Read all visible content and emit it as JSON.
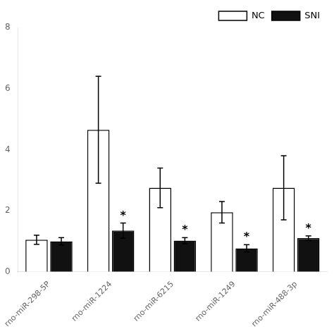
{
  "chart_data": {
    "type": "bar",
    "categories": [
      "rno-miR-298-5P",
      "rno-miR-1224",
      "rno-miR-6215",
      "rno-miR-1249",
      "rno-miR-488-3p"
    ],
    "series": [
      {
        "name": "NC",
        "color": "#ffffff",
        "values": [
          1.05,
          4.65,
          2.75,
          1.95,
          2.75
        ],
        "errors": [
          0.15,
          1.75,
          0.65,
          0.35,
          1.05
        ]
      },
      {
        "name": "SNI",
        "color": "#111111",
        "values": [
          1.0,
          1.35,
          1.02,
          0.77,
          1.1
        ],
        "errors": [
          0.12,
          0.25,
          0.1,
          0.12,
          0.08
        ]
      }
    ],
    "annotations": [
      {
        "text": "*",
        "series": "SNI",
        "category": "rno-miR-1224"
      },
      {
        "text": "*",
        "series": "SNI",
        "category": "rno-miR-6215"
      },
      {
        "text": "*",
        "series": "SNI",
        "category": "rno-miR-1249"
      },
      {
        "text": "*",
        "series": "SNI",
        "category": "rno-miR-488-3p"
      }
    ],
    "ylim": [
      0,
      8
    ],
    "yticks": [
      0,
      2,
      4,
      6,
      8
    ],
    "grid": false,
    "legend": "upper right"
  }
}
